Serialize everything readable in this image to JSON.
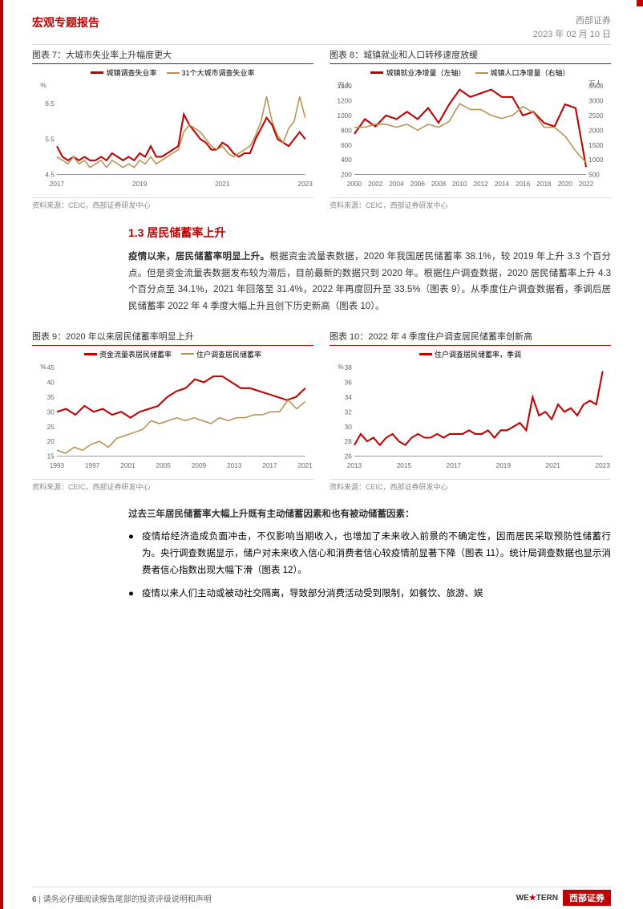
{
  "header": {
    "title": "宏观专题报告",
    "company": "西部证券",
    "date": "2023 年 02 月 10 日"
  },
  "chart7": {
    "title": "图表 7：大城市失业率上升幅度更大",
    "type": "line",
    "ylabel": "%",
    "series": [
      {
        "name": "城镇调查失业率",
        "color": "#c00000"
      },
      {
        "name": "31个大城市调查失业率",
        "color": "#b89050"
      }
    ],
    "xticks": [
      "2017",
      "2019",
      "2021",
      "2023"
    ],
    "ylim": [
      4.5,
      7
    ],
    "yticks": [
      4.5,
      5.5,
      6.5
    ],
    "data1": [
      5.3,
      5.0,
      4.9,
      5.0,
      4.9,
      5.0,
      4.9,
      4.9,
      5.0,
      4.9,
      5.1,
      5.0,
      4.9,
      5.0,
      4.9,
      5.1,
      5.0,
      5.3,
      5.0,
      5.0,
      5.1,
      5.2,
      5.3,
      6.2,
      5.9,
      5.7,
      5.5,
      5.4,
      5.2,
      5.2,
      5.4,
      5.3,
      5.1,
      5.0,
      5.1,
      5.1,
      5.5,
      5.8,
      6.1,
      5.9,
      5.5,
      5.4,
      5.3,
      5.5,
      5.7,
      5.5
    ],
    "data2": [
      5.0,
      4.9,
      4.8,
      5.0,
      4.8,
      4.9,
      4.7,
      4.8,
      4.9,
      4.7,
      4.9,
      4.8,
      4.7,
      4.8,
      4.7,
      4.9,
      4.8,
      5.0,
      4.8,
      4.9,
      5.0,
      5.1,
      5.2,
      5.7,
      5.9,
      5.8,
      5.7,
      5.5,
      5.3,
      5.2,
      5.3,
      5.1,
      5.0,
      5.1,
      5.2,
      5.3,
      5.6,
      6.0,
      6.7,
      6.0,
      5.6,
      5.4,
      5.8,
      6.0,
      6.7,
      6.1
    ],
    "source": "资料来源：CEIC，西部证券研发中心"
  },
  "chart8": {
    "title": "图表 8：城镇就业和人口转移速度放缓",
    "type": "line",
    "series": [
      {
        "name": "城镇就业净增量（左轴）",
        "color": "#c00000"
      },
      {
        "name": "城镇人口净增量（右轴）",
        "color": "#b89050"
      }
    ],
    "ylabel_left": "万人",
    "ylabel_right": "万人",
    "xticks": [
      "2000",
      "2002",
      "2004",
      "2006",
      "2008",
      "2010",
      "2012",
      "2014",
      "2016",
      "2018",
      "2020",
      "2022"
    ],
    "ylim_left": [
      200,
      1400
    ],
    "yticks_left": [
      200,
      400,
      600,
      800,
      1000,
      1200,
      1400
    ],
    "ylim_right": [
      500,
      3500
    ],
    "yticks_right": [
      500,
      1000,
      1500,
      2000,
      2500,
      3000,
      3500
    ],
    "data1": [
      750,
      950,
      850,
      1000,
      950,
      1050,
      950,
      1100,
      900,
      1150,
      1350,
      1250,
      1300,
      1350,
      1250,
      1250,
      1000,
      1050,
      900,
      850,
      1150,
      1100,
      300
    ],
    "data2": [
      2100,
      2100,
      2200,
      2200,
      2100,
      2200,
      2000,
      2200,
      2100,
      2300,
      2900,
      2700,
      2700,
      2500,
      2400,
      2500,
      2800,
      2600,
      2100,
      2100,
      1800,
      1300,
      900
    ],
    "source": "资料来源：CEIC，西部证券研发中心"
  },
  "section": {
    "heading": "1.3 居民储蓄率上升"
  },
  "para1": {
    "bold": "疫情以来，居民储蓄率明显上升。",
    "text": "根据资金流量表数据，2020 年我国居民储蓄率 38.1%，较 2019 年上升 3.3 个百分点。但是资金流量表数据发布较为滞后，目前最新的数据只到 2020 年。根据住户调查数据，2020 居民储蓄率上升 4.3 个百分点至 34.1%，2021 年回落至 31.4%，2022 年再度回升至 33.5%（图表 9）。从季度住户调查数据看，季调后居民储蓄率 2022 年 4 季度大幅上升且创下历史新高（图表 10）。"
  },
  "chart9": {
    "title": "图表 9：2020 年以来居民储蓄率明显上升",
    "type": "line",
    "ylabel": "%",
    "series": [
      {
        "name": "资金流量表居民储蓄率",
        "color": "#c00000"
      },
      {
        "name": "住户调查居民储蓄率",
        "color": "#b89050"
      }
    ],
    "xticks": [
      "1993",
      "1997",
      "2001",
      "2005",
      "2009",
      "2013",
      "2017",
      "2021"
    ],
    "ylim": [
      15,
      45
    ],
    "yticks": [
      15,
      20,
      25,
      30,
      35,
      40,
      45
    ],
    "data1": [
      30,
      31,
      29,
      32,
      30,
      31,
      29,
      30,
      28,
      30,
      31,
      32,
      35,
      37,
      38,
      41,
      40,
      42,
      42,
      40,
      38,
      38,
      37,
      36,
      35,
      34,
      35,
      38
    ],
    "data2": [
      17,
      16,
      18,
      17,
      19,
      20,
      18,
      21,
      22,
      23,
      24,
      27,
      26,
      27,
      28,
      27,
      28,
      27,
      26,
      28,
      27,
      28,
      28,
      29,
      29,
      30,
      30,
      34,
      31,
      33.5
    ],
    "source": "资料来源：CEIC，西部证券研发中心"
  },
  "chart10": {
    "title": "图表 10：2022 年 4 季度住户调查居民储蓄率创新高",
    "type": "line",
    "ylabel": "%",
    "series": [
      {
        "name": "住户调查居民储蓄率，季调",
        "color": "#c00000"
      }
    ],
    "xticks": [
      "2013",
      "2015",
      "2017",
      "2019",
      "2021",
      "2023"
    ],
    "ylim": [
      26,
      38
    ],
    "yticks": [
      26,
      28,
      30,
      32,
      34,
      36,
      38
    ],
    "data1": [
      27.5,
      29,
      28,
      28.5,
      27.5,
      28.5,
      29,
      28,
      27.5,
      28.5,
      29,
      28.5,
      28.5,
      29,
      28.5,
      29,
      29,
      29,
      29.5,
      29,
      29,
      29.5,
      28.5,
      29.5,
      29.5,
      30,
      30.5,
      29.5,
      34,
      31.5,
      32,
      31,
      33,
      32,
      32.5,
      31.5,
      33,
      33.5,
      33,
      37.5
    ],
    "source": "资料来源：CEIC，西部证券研发中心"
  },
  "para2": {
    "bold": "过去三年居民储蓄率大幅上升既有主动储蓄因素和也有被动储蓄因素："
  },
  "bullet1": {
    "bold": "疫情给经济造成负面冲击，不仅影响当期收入，也增加了未来收入前景的不确定性，因而居民采取预防性储蓄行为。",
    "text": "央行调查数据显示，储户对未来收入信心和消费者信心较疫情前显著下降（图表 11）。统计局调查数据也显示消费者信心指数出现大幅下滑（图表 12）。"
  },
  "bullet2": {
    "text": "疫情以来人们主动或被动社交隔离，导致部分消费活动受到限制，如餐饮、旅游、娱"
  },
  "footer": {
    "page": "6",
    "disclaimer": "请务必仔细阅读报告尾部的投资评级说明和声明",
    "logo_en": "WESTERN",
    "logo_cn": "西部证券"
  }
}
